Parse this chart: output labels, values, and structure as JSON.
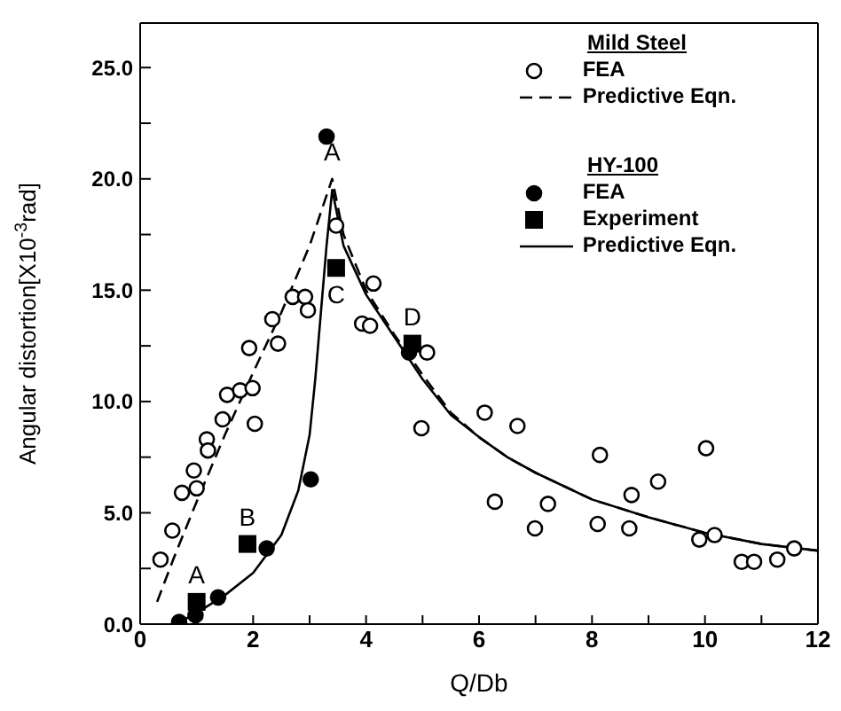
{
  "chart_data": {
    "type": "scatter",
    "xlabel": "Q/Db",
    "ylabel": "Angular distortion[X10$^{-3}$rad]",
    "xlim": [
      0,
      12
    ],
    "ylim": [
      0,
      27
    ],
    "xticks": [
      0,
      {
        "value": 1,
        "label": null
      },
      2,
      {
        "value": 3,
        "label": null
      },
      4,
      {
        "value": 5,
        "label": null
      },
      6,
      {
        "value": 7,
        "label": null
      },
      8,
      {
        "value": 9,
        "label": null
      },
      10,
      {
        "value": 11,
        "label": null
      },
      12
    ],
    "yticks": [
      {
        "value": 0,
        "label": "0.0"
      },
      {
        "value": 2.5,
        "label": null
      },
      {
        "value": 5,
        "label": "5.0"
      },
      {
        "value": 7.5,
        "label": null
      },
      {
        "value": 10,
        "label": "10.0"
      },
      {
        "value": 12.5,
        "label": null
      },
      {
        "value": 15,
        "label": "15.0"
      },
      {
        "value": 17.5,
        "label": null
      },
      {
        "value": 20,
        "label": "20.0"
      },
      {
        "value": 22.5,
        "label": null
      },
      {
        "value": 25,
        "label": "25.0"
      }
    ],
    "legend": "top right",
    "legend_title": "Mild Steel",
    "series": [
      {
        "name": "FEA",
        "color": "#000000",
        "type": "scatter",
        "marker": "circle",
        "x": [
          0.36,
          0.57,
          0.74,
          1.0,
          0.95,
          1.18,
          1.2,
          1.46,
          1.54,
          1.77,
          1.99,
          2.03,
          1.93,
          2.44,
          2.34,
          2.7,
          2.92,
          2.97,
          3.47,
          4.13,
          3.93,
          4.07,
          5.08,
          4.98,
          6.1,
          6.68,
          6.28,
          6.99,
          7.22,
          8.14,
          8.1,
          8.7,
          8.66,
          9.17,
          10.02,
          9.9,
          10.17,
          10.65,
          10.87,
          11.28,
          11.58
        ],
        "values": [
          2.9,
          4.2,
          5.9,
          6.1,
          6.9,
          8.3,
          7.8,
          9.2,
          10.3,
          10.5,
          10.6,
          9.0,
          12.4,
          12.6,
          13.7,
          14.7,
          14.7,
          14.1,
          17.9,
          15.3,
          13.5,
          13.4,
          12.2,
          8.8,
          9.5,
          8.9,
          5.5,
          4.3,
          5.4,
          7.6,
          4.5,
          5.8,
          4.3,
          6.4,
          7.9,
          3.8,
          4.0,
          2.8,
          2.8,
          2.9,
          3.4
        ]
      },
      {
        "name": "Predictive Eqn.",
        "color": "#000000",
        "type": "line",
        "marker": "none",
        "line_style": "dashed",
        "x": [
          0.3,
          0.6,
          1.0,
          1.5,
          2.0,
          2.5,
          3.0,
          3.4,
          3.6,
          4.0,
          4.5,
          5.0,
          5.5,
          6.0,
          6.5,
          7.0,
          8.0,
          9.0,
          10.0,
          11.0,
          12.0
        ],
        "values": [
          1.0,
          3.0,
          5.5,
          8.5,
          11.3,
          14.0,
          17.0,
          20.0,
          17.5,
          15.0,
          13.0,
          11.2,
          9.5,
          8.4,
          7.5,
          6.8,
          5.6,
          4.8,
          4.1,
          3.6,
          3.3
        ]
      },
      {
        "name": "FEA",
        "color": "#000000",
        "type": "scatter",
        "marker": "circle",
        "x": [
          3.3,
          0.69,
          0.98,
          1.38,
          2.24,
          3.02,
          4.76
        ],
        "values": [
          21.9,
          0.1,
          0.4,
          1.2,
          3.4,
          6.5,
          12.2
        ]
      },
      {
        "name": "Experiment",
        "color": "#000000",
        "type": "scatter",
        "marker": "square",
        "x": [
          1.0,
          1.9,
          3.47,
          4.82
        ],
        "values": [
          1.0,
          3.6,
          16.0,
          12.6
        ]
      },
      {
        "name": "Predictive Eqn.",
        "color": "#000000",
        "type": "line",
        "marker": "none",
        "line_style": "solid",
        "x": [
          0.7,
          1.0,
          1.5,
          2.0,
          2.5,
          2.8,
          3.0,
          3.1,
          3.2,
          3.3,
          3.4,
          3.6,
          4.0,
          4.5,
          5.0,
          5.5,
          6.0,
          6.5,
          7.0,
          8.0,
          9.0,
          10.0,
          11.0,
          12.0
        ],
        "values": [
          0.1,
          0.5,
          1.3,
          2.3,
          4.0,
          6.0,
          8.5,
          11.0,
          14.0,
          17.0,
          19.5,
          17.0,
          14.8,
          12.9,
          11.0,
          9.4,
          8.4,
          7.5,
          6.8,
          5.6,
          4.8,
          4.1,
          3.6,
          3.3
        ]
      }
    ],
    "annotations": [
      "HY-100",
      {
        "text": "A",
        "x": 1.0,
        "y": 1.0
      },
      {
        "text": "B",
        "x": 1.9,
        "y": 3.6
      },
      {
        "text": "C",
        "x": 3.47,
        "y": 16.0
      },
      {
        "text": "D",
        "x": 4.82,
        "y": 12.6
      },
      {
        "text": "A",
        "x": 3.4,
        "y": 20.0
      }
    ]
  }
}
